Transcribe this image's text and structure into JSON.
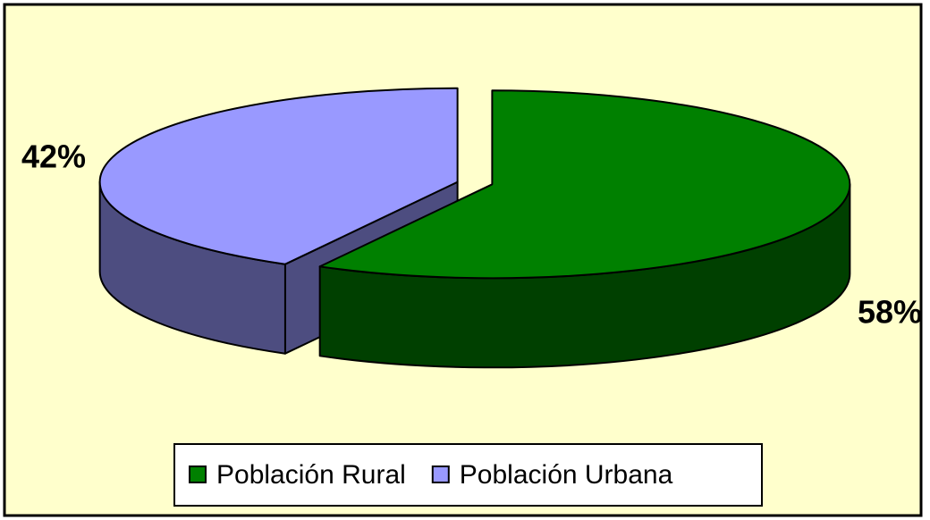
{
  "chart_data": {
    "type": "pie3d",
    "categories": [
      "Población Rural",
      "Población Urbana"
    ],
    "values": [
      58,
      42
    ],
    "value_labels": [
      "58%",
      "42%"
    ],
    "colors": [
      "#008000",
      "#9999ff"
    ]
  }
}
